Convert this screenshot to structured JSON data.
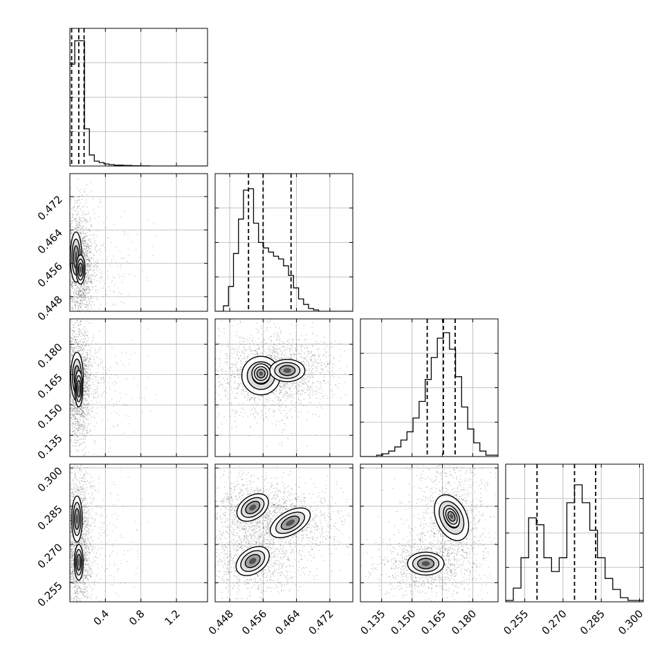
{
  "chart_data": {
    "type": "corner",
    "title": "",
    "parameters": [
      {
        "ticks": [
          0.4,
          0.8,
          1.2
        ],
        "tick_labels": [
          "0.4",
          "0.8",
          "1.2"
        ],
        "range": [
          0.0,
          1.55
        ]
      },
      {
        "ticks": [
          0.448,
          0.456,
          0.464,
          0.472
        ],
        "tick_labels": [
          "0.448",
          "0.456",
          "0.464",
          "0.472"
        ],
        "range": [
          0.4445,
          0.4775
        ]
      },
      {
        "ticks": [
          0.135,
          0.15,
          0.165,
          0.18
        ],
        "tick_labels": [
          "0.135",
          "0.150",
          "0.165",
          "0.180"
        ],
        "range": [
          0.1245,
          0.1925
        ]
      },
      {
        "ticks": [
          0.255,
          0.27,
          0.285,
          0.3
        ],
        "tick_labels": [
          "0.255",
          "0.270",
          "0.285",
          "0.300"
        ],
        "range": [
          0.2475,
          0.3015
        ]
      }
    ],
    "quantiles": [
      [
        0.02,
        0.1,
        0.16
      ],
      [
        0.4525,
        0.456,
        0.4627
      ],
      [
        0.1575,
        0.1655,
        0.1713
      ],
      [
        0.2598,
        0.2745,
        0.2828
      ]
    ],
    "histograms": [
      {
        "edges": [
          0.0,
          0.055,
          0.11,
          0.165,
          0.22,
          0.275,
          0.33,
          0.385,
          0.44,
          0.5,
          0.6,
          0.7,
          0.8,
          0.9,
          1.55
        ],
        "counts": [
          0.74,
          0.91,
          0.91,
          0.27,
          0.08,
          0.035,
          0.025,
          0.015,
          0.01,
          0.006,
          0.004,
          0.002,
          0.001,
          0.0
        ]
      },
      {
        "edges": [
          0.4445,
          0.4465,
          0.4477,
          0.4489,
          0.4501,
          0.4513,
          0.4525,
          0.4537,
          0.4549,
          0.4561,
          0.4573,
          0.4585,
          0.4597,
          0.4609,
          0.4621,
          0.4633,
          0.4645,
          0.4657,
          0.4669,
          0.4681,
          0.4693,
          0.4705,
          0.4775
        ],
        "counts": [
          0.0,
          0.04,
          0.18,
          0.42,
          0.67,
          0.88,
          0.89,
          0.64,
          0.5,
          0.46,
          0.43,
          0.4,
          0.38,
          0.33,
          0.26,
          0.17,
          0.09,
          0.05,
          0.02,
          0.01,
          0.0,
          0.0
        ]
      },
      {
        "edges": [
          0.1245,
          0.1325,
          0.1355,
          0.1385,
          0.1415,
          0.1445,
          0.1475,
          0.1505,
          0.1535,
          0.1565,
          0.1595,
          0.1625,
          0.1655,
          0.1685,
          0.1715,
          0.1745,
          0.1775,
          0.1805,
          0.1835,
          0.1865,
          0.1925
        ],
        "counts": [
          0.0,
          0.01,
          0.02,
          0.04,
          0.07,
          0.12,
          0.18,
          0.28,
          0.4,
          0.56,
          0.72,
          0.86,
          0.9,
          0.78,
          0.58,
          0.36,
          0.2,
          0.1,
          0.04,
          0.01
        ]
      },
      {
        "edges": [
          0.2475,
          0.2505,
          0.2535,
          0.2565,
          0.2595,
          0.2625,
          0.2655,
          0.2685,
          0.2715,
          0.2745,
          0.2775,
          0.2805,
          0.2835,
          0.2865,
          0.2895,
          0.2925,
          0.2955,
          0.3015
        ],
        "counts": [
          0.01,
          0.1,
          0.32,
          0.61,
          0.56,
          0.32,
          0.22,
          0.32,
          0.72,
          0.85,
          0.72,
          0.52,
          0.32,
          0.17,
          0.09,
          0.03,
          0.01
        ]
      }
    ],
    "contours_2d": {
      "1-0": [
        {
          "cx": 0.07,
          "cy": 0.4575,
          "rx": 0.065,
          "ry": 0.006,
          "rot": 0
        },
        {
          "cx": 0.12,
          "cy": 0.4545,
          "rx": 0.05,
          "ry": 0.0035,
          "rot": 0
        }
      ],
      "2-0": [
        {
          "cx": 0.08,
          "cy": 0.164,
          "rx": 0.07,
          "ry": 0.012,
          "rot": 0
        },
        {
          "cx": 0.1,
          "cy": 0.158,
          "rx": 0.045,
          "ry": 0.009,
          "rot": 0
        }
      ],
      "2-1": [
        {
          "cx": 0.4555,
          "cy": 0.1645,
          "rx": 0.0046,
          "ry": 0.0095,
          "rot": 0
        },
        {
          "cx": 0.4618,
          "cy": 0.167,
          "rx": 0.0042,
          "ry": 0.0055,
          "rot": 0
        },
        {
          "cx": 0.4555,
          "cy": 0.1655,
          "rx": 0.0022,
          "ry": 0.0048,
          "rot": 0
        }
      ],
      "3-0": [
        {
          "cx": 0.08,
          "cy": 0.28,
          "rx": 0.06,
          "ry": 0.009,
          "rot": 0
        },
        {
          "cx": 0.1,
          "cy": 0.263,
          "rx": 0.05,
          "ry": 0.007,
          "rot": 0
        }
      ],
      "3-1": [
        {
          "cx": 0.4535,
          "cy": 0.2845,
          "rx": 0.0042,
          "ry": 0.0045,
          "rot": -35
        },
        {
          "cx": 0.4625,
          "cy": 0.2785,
          "rx": 0.0053,
          "ry": 0.0045,
          "rot": -30
        },
        {
          "cx": 0.4535,
          "cy": 0.2635,
          "rx": 0.0044,
          "ry": 0.0048,
          "rot": -35
        }
      ],
      "3-2": [
        {
          "cx": 0.1695,
          "cy": 0.2805,
          "rx": 0.0075,
          "ry": 0.0095,
          "rot": -25
        },
        {
          "cx": 0.1568,
          "cy": 0.2625,
          "rx": 0.009,
          "ry": 0.0045,
          "rot": 0
        },
        {
          "cx": 0.1695,
          "cy": 0.281,
          "rx": 0.0035,
          "ry": 0.0045,
          "rot": -25
        }
      ]
    }
  }
}
